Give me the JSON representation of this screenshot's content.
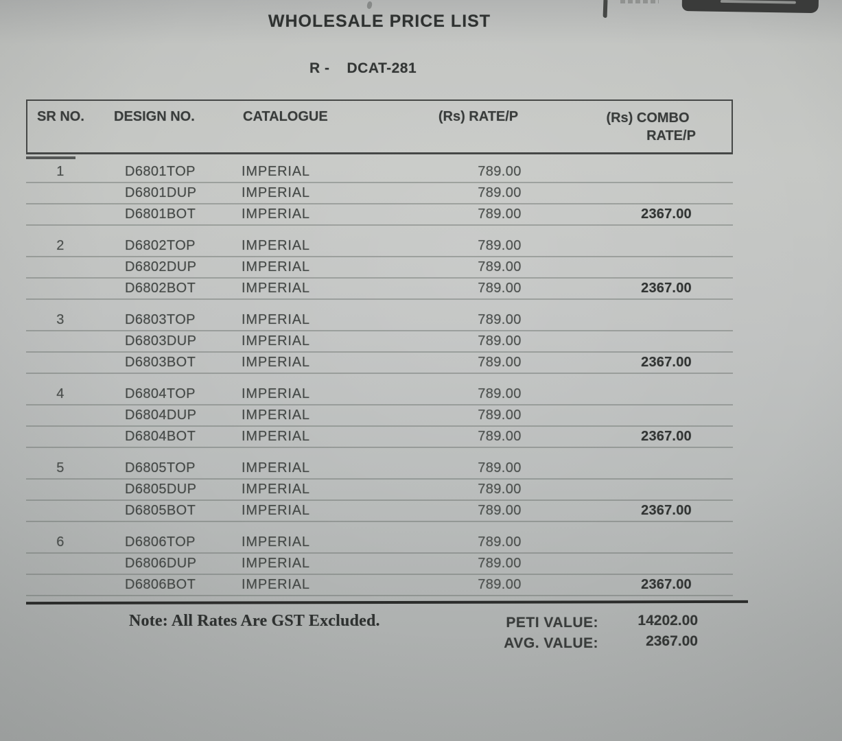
{
  "page": {
    "title": "WHOLESALE PRICE LIST",
    "subtitle_prefix": "R -",
    "subtitle_code": "DCAT-281"
  },
  "table": {
    "headers": {
      "sr": "SR NO.",
      "design": "DESIGN NO.",
      "catalogue": "CATALOGUE",
      "rate": "(Rs) RATE/P",
      "combo_line1": "(Rs) COMBO",
      "combo_line2": "RATE/P"
    },
    "groups": [
      {
        "sr": "1",
        "rows": [
          {
            "design": "D6801TOP",
            "catalogue": "IMPERIAL",
            "rate": "789.00",
            "combo": ""
          },
          {
            "design": "D6801DUP",
            "catalogue": "IMPERIAL",
            "rate": "789.00",
            "combo": ""
          },
          {
            "design": "D6801BOT",
            "catalogue": "IMPERIAL",
            "rate": "789.00",
            "combo": "2367.00"
          }
        ]
      },
      {
        "sr": "2",
        "rows": [
          {
            "design": "D6802TOP",
            "catalogue": "IMPERIAL",
            "rate": "789.00",
            "combo": ""
          },
          {
            "design": "D6802DUP",
            "catalogue": "IMPERIAL",
            "rate": "789.00",
            "combo": ""
          },
          {
            "design": "D6802BOT",
            "catalogue": "IMPERIAL",
            "rate": "789.00",
            "combo": "2367.00"
          }
        ]
      },
      {
        "sr": "3",
        "rows": [
          {
            "design": "D6803TOP",
            "catalogue": "IMPERIAL",
            "rate": "789.00",
            "combo": ""
          },
          {
            "design": "D6803DUP",
            "catalogue": "IMPERIAL",
            "rate": "789.00",
            "combo": ""
          },
          {
            "design": "D6803BOT",
            "catalogue": "IMPERIAL",
            "rate": "789.00",
            "combo": "2367.00"
          }
        ]
      },
      {
        "sr": "4",
        "rows": [
          {
            "design": "D6804TOP",
            "catalogue": "IMPERIAL",
            "rate": "789.00",
            "combo": ""
          },
          {
            "design": "D6804DUP",
            "catalogue": "IMPERIAL",
            "rate": "789.00",
            "combo": ""
          },
          {
            "design": "D6804BOT",
            "catalogue": "IMPERIAL",
            "rate": "789.00",
            "combo": "2367.00"
          }
        ]
      },
      {
        "sr": "5",
        "rows": [
          {
            "design": "D6805TOP",
            "catalogue": "IMPERIAL",
            "rate": "789.00",
            "combo": ""
          },
          {
            "design": "D6805DUP",
            "catalogue": "IMPERIAL",
            "rate": "789.00",
            "combo": ""
          },
          {
            "design": "D6805BOT",
            "catalogue": "IMPERIAL",
            "rate": "789.00",
            "combo": "2367.00"
          }
        ]
      },
      {
        "sr": "6",
        "rows": [
          {
            "design": "D6806TOP",
            "catalogue": "IMPERIAL",
            "rate": "789.00",
            "combo": ""
          },
          {
            "design": "D6806DUP",
            "catalogue": "IMPERIAL",
            "rate": "789.00",
            "combo": ""
          },
          {
            "design": "D6806BOT",
            "catalogue": "IMPERIAL",
            "rate": "789.00",
            "combo": "2367.00"
          }
        ]
      }
    ]
  },
  "footer": {
    "note": "Note: All Rates Are GST Excluded.",
    "peti_label": "PETI VALUE:",
    "peti_value": "14202.00",
    "avg_label": "AVG. VALUE:",
    "avg_value": "2367.00"
  },
  "colors": {
    "paper": "#c0c2c1",
    "ink": "#393c3b",
    "separator_line": "#6e726e",
    "thick_rule": "#2b2c2b",
    "stamp": "#3a3b3a"
  }
}
